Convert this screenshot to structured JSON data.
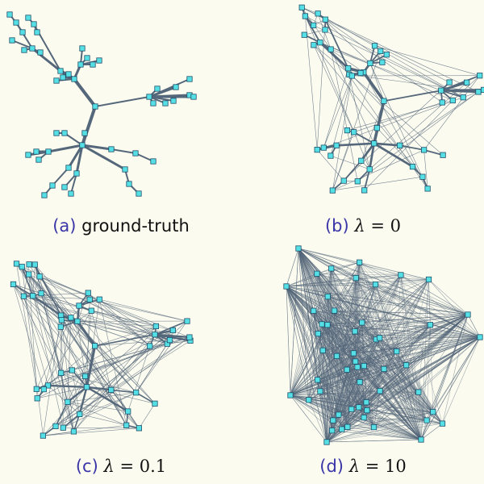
{
  "colors": {
    "background": "#fbfbef",
    "edge": "#55677a",
    "node_fill": "#55e0e6",
    "node_stroke": "#20506a",
    "caption_letter": "#3a36a8"
  },
  "panels": [
    {
      "id": "a",
      "caption": {
        "letter": "(a)",
        "text": "ground-truth"
      },
      "graph": "tree",
      "edge_density": 0.0
    },
    {
      "id": "b",
      "caption": {
        "letter": "(b)",
        "symbol": "λ",
        "eq": "=",
        "value": "0"
      },
      "graph": "tree-plus-noise",
      "edge_density": 0.05
    },
    {
      "id": "c",
      "caption": {
        "letter": "(c)",
        "symbol": "λ",
        "eq": "=",
        "value": "0.1"
      },
      "graph": "tree-plus-noise",
      "edge_density": 0.12
    },
    {
      "id": "d",
      "caption": {
        "letter": "(d)",
        "symbol": "λ",
        "eq": "=",
        "value": "10"
      },
      "graph": "dense-convex",
      "edge_density": 0.55
    }
  ]
}
